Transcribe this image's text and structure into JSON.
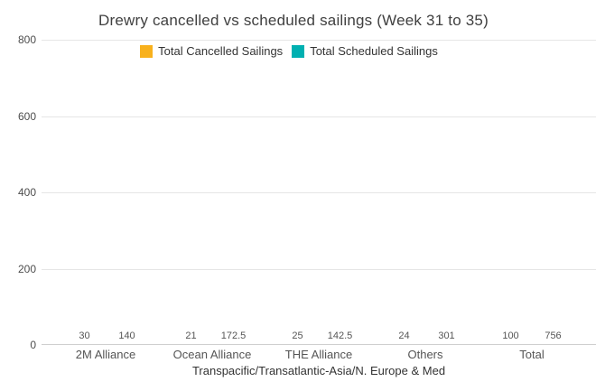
{
  "chart_data": {
    "type": "bar",
    "title": "Drewry cancelled vs scheduled sailings (Week 31 to 35)",
    "categories": [
      "2M Alliance",
      "Ocean Alliance",
      "THE Alliance",
      "Others",
      "Total"
    ],
    "series": [
      {
        "name": "Total Cancelled Sailings",
        "color": "#F8B11D",
        "values": [
          30,
          21,
          25,
          24,
          100
        ]
      },
      {
        "name": "Total Scheduled Sailings",
        "color": "#00B0B1",
        "values": [
          140,
          172.5,
          142.5,
          301,
          756
        ]
      }
    ],
    "xlabel": "Transpacific/Transatlantic-Asia/N. Europe & Med",
    "ylabel": "",
    "ylim": [
      0,
      800
    ],
    "yticks": [
      0,
      200,
      400,
      600,
      800
    ],
    "grid": true,
    "legend_position": "top-center",
    "colors": {
      "title_text": "#404040",
      "tick_text": "#4d4d4d",
      "category_text": "#555555",
      "axis_title_text": "#333333",
      "gridline": "#e6e6e6",
      "axis_line": "#cfcfcf",
      "background": "#ffffff"
    }
  }
}
